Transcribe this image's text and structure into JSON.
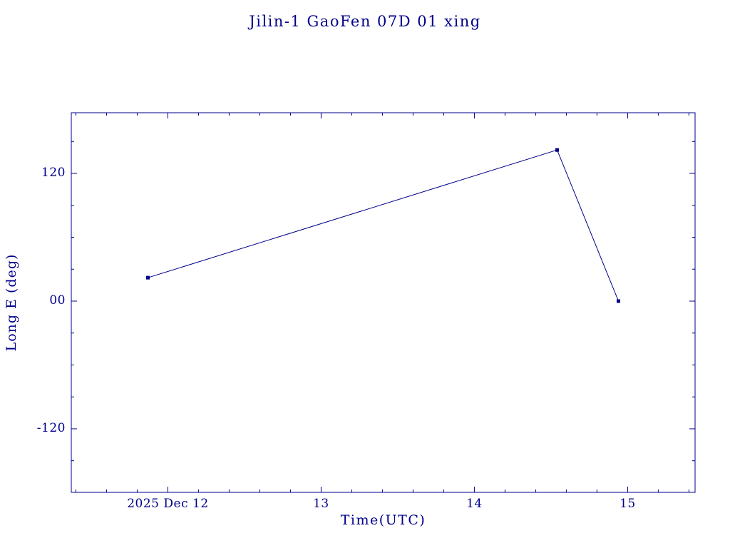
{
  "page": {
    "background": "#FFFFFF"
  },
  "colors": {
    "accent": "#00008B"
  },
  "chart_data": {
    "type": "line",
    "title": "Jilin-1 GaoFen 07D 01 xing",
    "xlabel": "Time(UTC)",
    "ylabel": "Long E (deg)",
    "x_tick_values": [
      12,
      13,
      14,
      15
    ],
    "x_tick_labels": [
      "2025 Dec 12",
      "13",
      "14",
      "15"
    ],
    "x_minor_step": 0.2,
    "y_tick_values": [
      120,
      0,
      -120
    ],
    "y_tick_labels": [
      "120",
      "00",
      "-120"
    ],
    "y_minor_step": 30,
    "xlim": [
      11.37,
      15.44
    ],
    "ylim": [
      -179.7,
      177.0
    ],
    "series": [
      {
        "name": "Long E",
        "points": [
          {
            "x": 11.87,
            "y": 22
          },
          {
            "x": 14.54,
            "y": 142
          },
          {
            "x": 14.94,
            "y": 0
          }
        ]
      }
    ],
    "marker": "square",
    "line_color": "#00008B",
    "legend": "none",
    "grid": false
  }
}
